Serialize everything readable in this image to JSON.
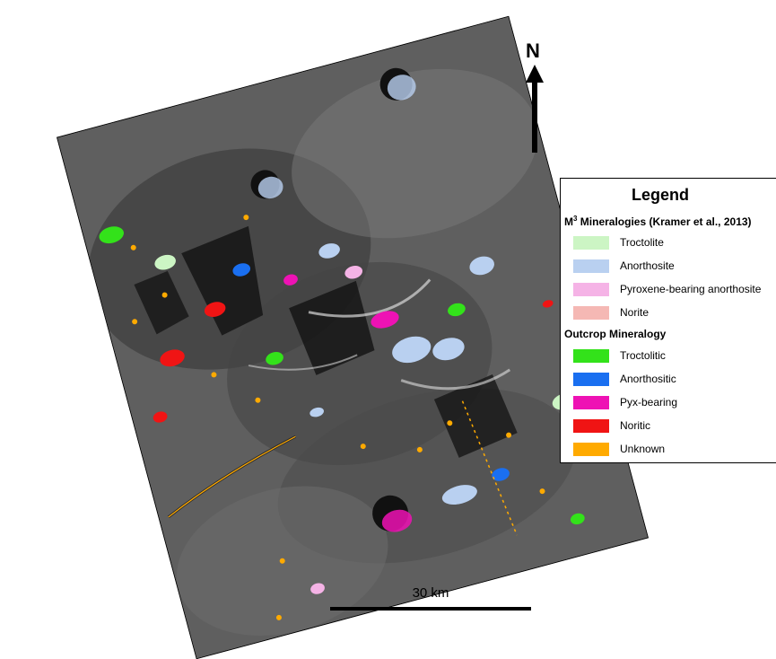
{
  "north": {
    "label": "N"
  },
  "legend": {
    "title": "Legend",
    "m3_heading_prefix": "M",
    "m3_heading_sup": "3",
    "m3_heading_rest": " Mineralogies (Kramer et al., 2013)",
    "m3_items": [
      {
        "label": "Troctolite",
        "color": "#ccf5c4"
      },
      {
        "label": "Anorthosite",
        "color": "#b9d0f0"
      },
      {
        "label": "Pyroxene-bearing anorthosite",
        "color": "#f5b3e6"
      },
      {
        "label": "Norite",
        "color": "#f5b8b4"
      }
    ],
    "outcrop_heading": "Outcrop Mineralogy",
    "outcrop_items": [
      {
        "label": "Troctolitic",
        "color": "#33e21a"
      },
      {
        "label": "Anorthositic",
        "color": "#1a6ff0"
      },
      {
        "label": "Pyx-bearing",
        "color": "#ee12b4"
      },
      {
        "label": "Noritic",
        "color": "#f01414"
      },
      {
        "label": "Unknown",
        "color": "#ffaa00"
      }
    ]
  },
  "scale": {
    "label": "30 km"
  }
}
